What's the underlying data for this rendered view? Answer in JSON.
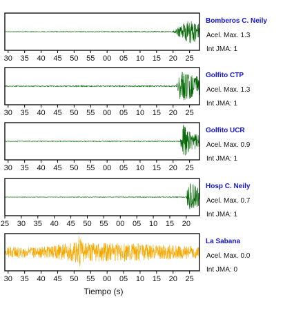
{
  "chart_data": [
    {
      "type": "line",
      "station": "Bomberos C. Neily",
      "acel_label": "Acel. Max. 1.3",
      "int_label": "Int JMA: 1",
      "color": "#006400",
      "tick_labels": [
        "30",
        "35",
        "40",
        "45",
        "50",
        "55",
        "00",
        "05",
        "10",
        "15",
        "20",
        "25"
      ],
      "start_offset": 2,
      "signal": [
        {
          "x": 0.0,
          "amp": 0.01
        },
        {
          "x": 0.86,
          "amp": 0.02
        },
        {
          "x": 0.89,
          "amp": 0.25
        },
        {
          "x": 0.92,
          "amp": 0.5
        },
        {
          "x": 0.96,
          "amp": 0.7
        },
        {
          "x": 1.0,
          "amp": 0.4
        }
      ]
    },
    {
      "type": "line",
      "station": "Golfito CTP",
      "acel_label": "Acel. Max. 1.3",
      "int_label": "Int JMA: 1",
      "color": "#006400",
      "tick_labels": [
        "30",
        "35",
        "40",
        "45",
        "50",
        "55",
        "00",
        "05",
        "10",
        "15",
        "20",
        "25"
      ],
      "start_offset": 2,
      "signal": [
        {
          "x": 0.0,
          "amp": 0.02
        },
        {
          "x": 0.88,
          "amp": 0.03
        },
        {
          "x": 0.9,
          "amp": 0.9
        },
        {
          "x": 0.94,
          "amp": 0.75
        },
        {
          "x": 1.0,
          "amp": 0.55
        }
      ]
    },
    {
      "type": "line",
      "station": "Golfito UCR",
      "acel_label": "Acel. Max. 0.9",
      "int_label": "Int JMA: 1",
      "color": "#006400",
      "tick_labels": [
        "30",
        "35",
        "40",
        "45",
        "50",
        "55",
        "00",
        "05",
        "10",
        "15",
        "20",
        "25"
      ],
      "start_offset": 2,
      "signal": [
        {
          "x": 0.0,
          "amp": 0.015
        },
        {
          "x": 0.9,
          "amp": 0.02
        },
        {
          "x": 0.915,
          "amp": 0.95
        },
        {
          "x": 0.95,
          "amp": 0.6
        },
        {
          "x": 1.0,
          "amp": 0.35
        }
      ]
    },
    {
      "type": "line",
      "station": "Hosp C. Neily",
      "acel_label": "Acel. Max. 0.7",
      "int_label": "Int JMA: 1",
      "color": "#006400",
      "tick_labels": [
        "25",
        "30",
        "35",
        "40",
        "45",
        "50",
        "55",
        "00",
        "05",
        "10",
        "15",
        "20"
      ],
      "start_offset": 0,
      "signal": [
        {
          "x": 0.0,
          "amp": 0.01
        },
        {
          "x": 0.93,
          "amp": 0.02
        },
        {
          "x": 0.945,
          "amp": 0.9
        },
        {
          "x": 0.97,
          "amp": 0.7
        },
        {
          "x": 1.0,
          "amp": 0.5
        }
      ]
    },
    {
      "type": "line",
      "station": "La Sabana",
      "acel_label": "Acel. Max. 0.0",
      "int_label": "Int JMA: 0",
      "color": "#f5a800",
      "tick_labels": [
        "30",
        "35",
        "40",
        "45",
        "50",
        "55",
        "00",
        "05",
        "10",
        "15",
        "20",
        "25"
      ],
      "start_offset": 2,
      "signal": [
        {
          "x": 0.0,
          "amp": 0.3
        },
        {
          "x": 0.25,
          "amp": 0.35
        },
        {
          "x": 0.36,
          "amp": 0.6
        },
        {
          "x": 0.38,
          "amp": 0.95
        },
        {
          "x": 0.41,
          "amp": 0.55
        },
        {
          "x": 0.65,
          "amp": 0.5
        },
        {
          "x": 1.0,
          "amp": 0.35
        }
      ]
    }
  ],
  "xlabel": "Tiempo (s)"
}
